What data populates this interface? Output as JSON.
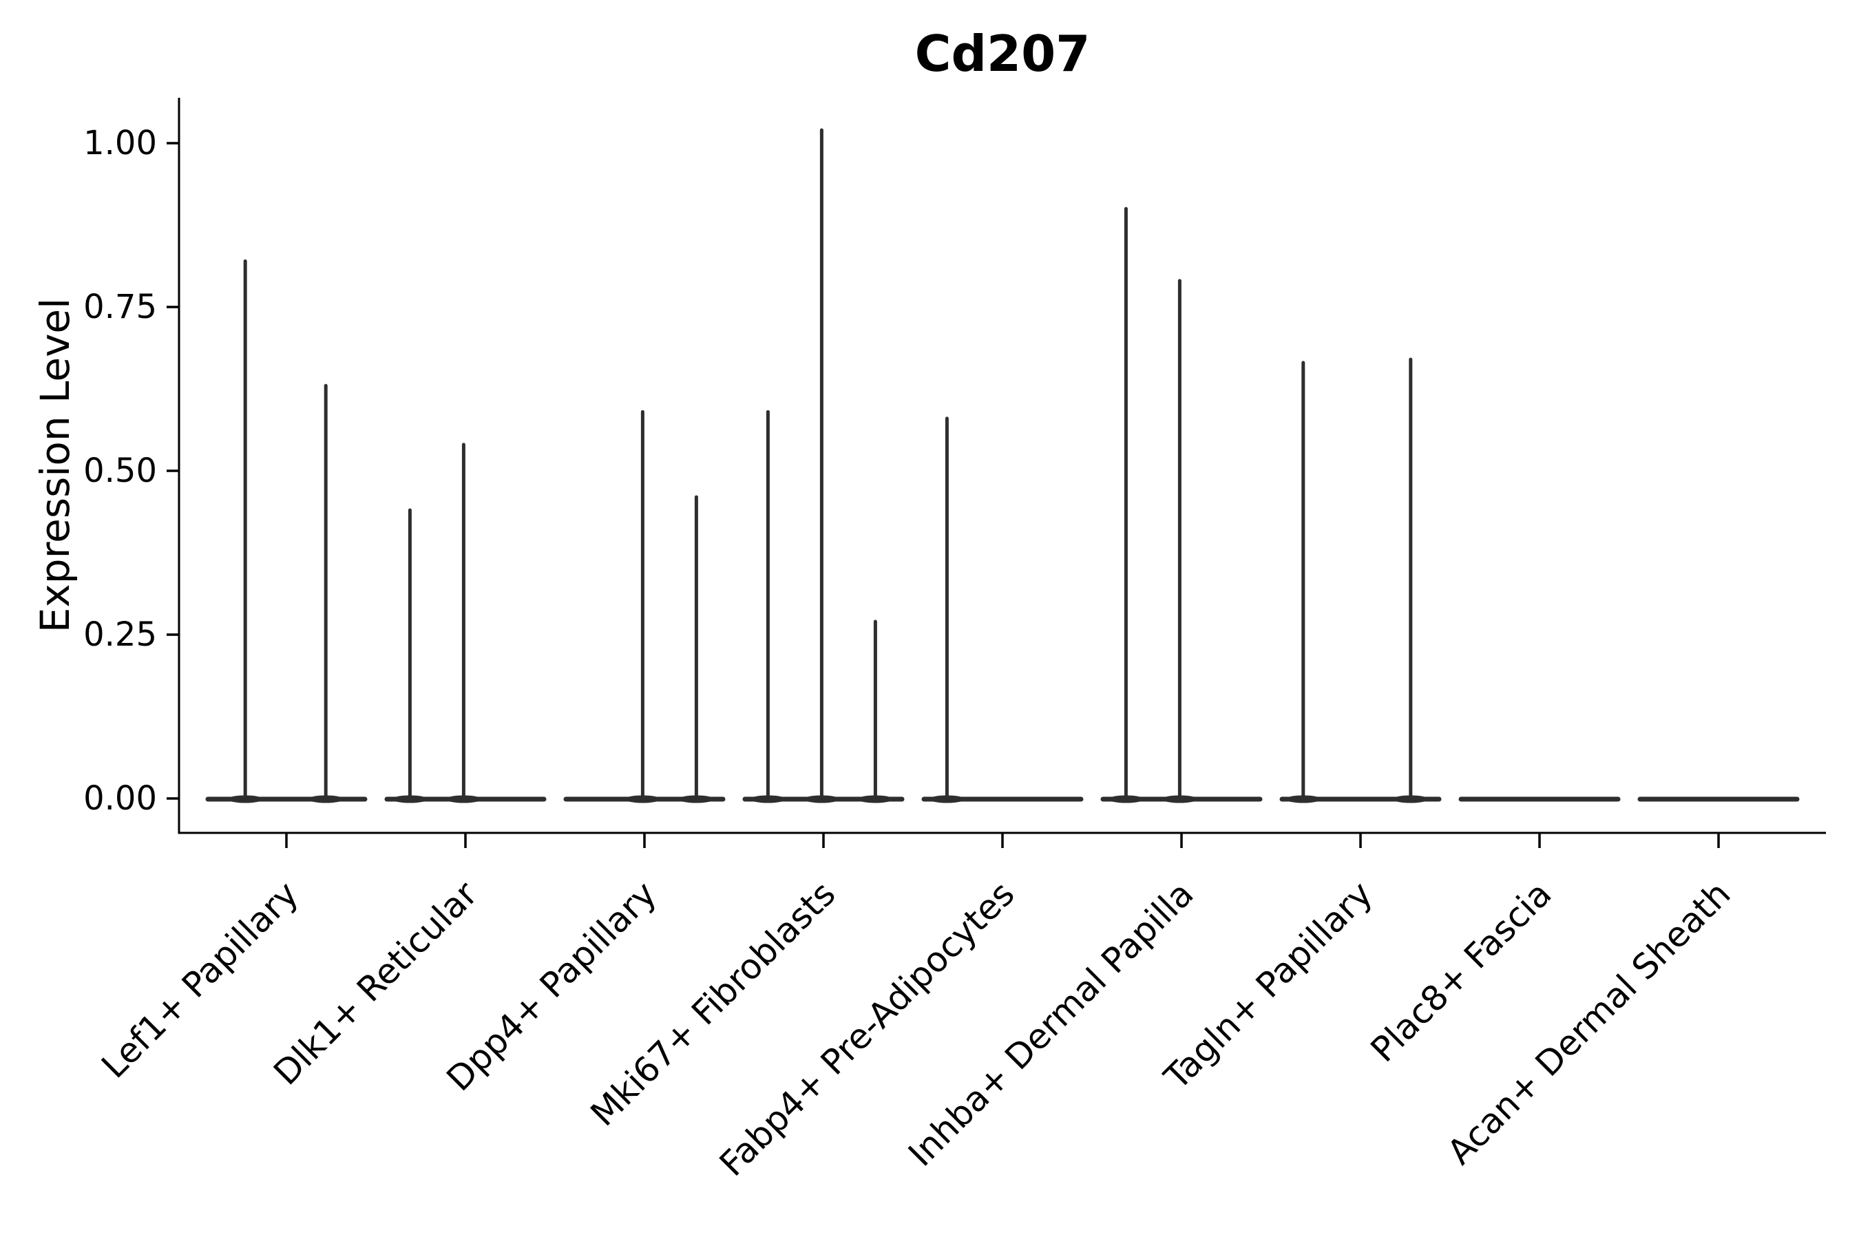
{
  "chart_data": {
    "type": "violin",
    "title": "Cd207",
    "ylabel": "Expression Level",
    "xlabel": "",
    "ylim": [
      0,
      1.05
    ],
    "grid": false,
    "legend": null,
    "yticks": [
      {
        "value": 0.0,
        "label": "0.00"
      },
      {
        "value": 0.25,
        "label": "0.25"
      },
      {
        "value": 0.5,
        "label": "0.50"
      },
      {
        "value": 0.75,
        "label": "0.75"
      },
      {
        "value": 1.0,
        "label": "1.00"
      }
    ],
    "categories": [
      {
        "label": "Lef1+ Papillary",
        "spikes": [
          {
            "offset": -0.23,
            "value": 0.82
          },
          {
            "offset": 0.22,
            "value": 0.63
          }
        ]
      },
      {
        "label": "Dlk1+ Reticular",
        "spikes": [
          {
            "offset": -0.31,
            "value": 0.44
          },
          {
            "offset": -0.01,
            "value": 0.54
          }
        ]
      },
      {
        "label": "Dpp4+ Papillary",
        "spikes": [
          {
            "offset": -0.01,
            "value": 0.59
          },
          {
            "offset": 0.29,
            "value": 0.46
          }
        ]
      },
      {
        "label": "Mki67+ Fibroblasts",
        "spikes": [
          {
            "offset": -0.31,
            "value": 0.59
          },
          {
            "offset": -0.01,
            "value": 1.02
          },
          {
            "offset": 0.29,
            "value": 0.27
          }
        ]
      },
      {
        "label": "Fabp4+ Pre-Adipocytes",
        "spikes": [
          {
            "offset": -0.31,
            "value": 0.58
          }
        ]
      },
      {
        "label": "Inhba+ Dermal Papilla",
        "spikes": [
          {
            "offset": -0.31,
            "value": 0.9
          },
          {
            "offset": -0.01,
            "value": 0.79
          }
        ]
      },
      {
        "label": "Tagln+ Papillary",
        "spikes": [
          {
            "offset": -0.32,
            "value": 0.665
          },
          {
            "offset": 0.28,
            "value": 0.67
          }
        ]
      },
      {
        "label": "Plac8+ Fascia",
        "spikes": []
      },
      {
        "label": "Acan+ Dermal Sheath",
        "spikes": []
      }
    ],
    "colors": {
      "violin": "#2e2e2e",
      "axis": "#000000",
      "text": "#000000",
      "background": "#ffffff"
    }
  }
}
